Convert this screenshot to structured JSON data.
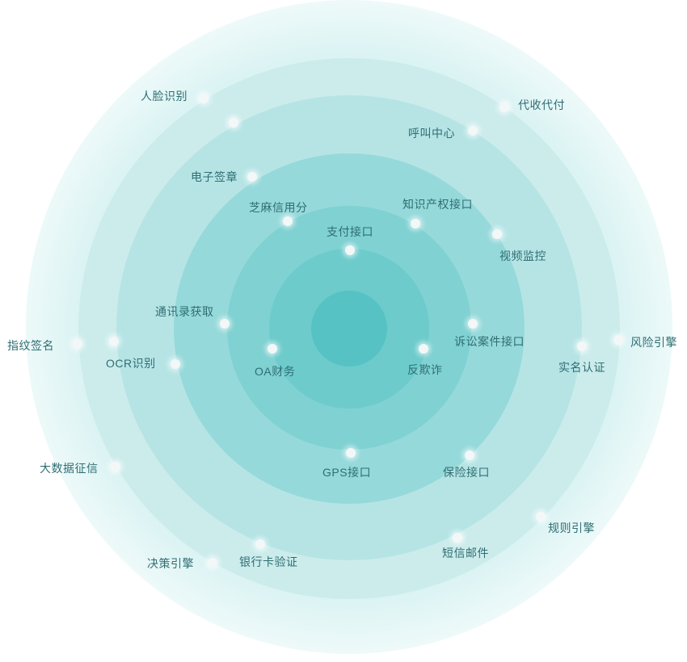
{
  "nodes": [
    {
      "key": "face",
      "label": "人脸识别"
    },
    {
      "key": "collect",
      "label": "代收代付"
    },
    {
      "key": "call",
      "label": "呼叫中心"
    },
    {
      "key": "esign",
      "label": "电子签章"
    },
    {
      "key": "zhima",
      "label": "芝麻信用分"
    },
    {
      "key": "ip",
      "label": "知识产权接口"
    },
    {
      "key": "pay",
      "label": "支付接口"
    },
    {
      "key": "video",
      "label": "视频监控"
    },
    {
      "key": "contacts",
      "label": "通讯录获取"
    },
    {
      "key": "fingerprint",
      "label": "指纹签名"
    },
    {
      "key": "ocr",
      "label": "OCR识别"
    },
    {
      "key": "oa",
      "label": "OA财务"
    },
    {
      "key": "antifraud",
      "label": "反欺诈"
    },
    {
      "key": "lawsuit",
      "label": "诉讼案件接口"
    },
    {
      "key": "realname",
      "label": "实名认证"
    },
    {
      "key": "risk",
      "label": "风险引擎"
    },
    {
      "key": "bigdata",
      "label": "大数据征信"
    },
    {
      "key": "gps",
      "label": "GPS接口"
    },
    {
      "key": "insurance",
      "label": "保险接口"
    },
    {
      "key": "rules",
      "label": "规则引擎"
    },
    {
      "key": "sms",
      "label": "短信邮件"
    },
    {
      "key": "decision",
      "label": "决策引擎"
    },
    {
      "key": "bankcard",
      "label": "银行卡验证"
    }
  ]
}
